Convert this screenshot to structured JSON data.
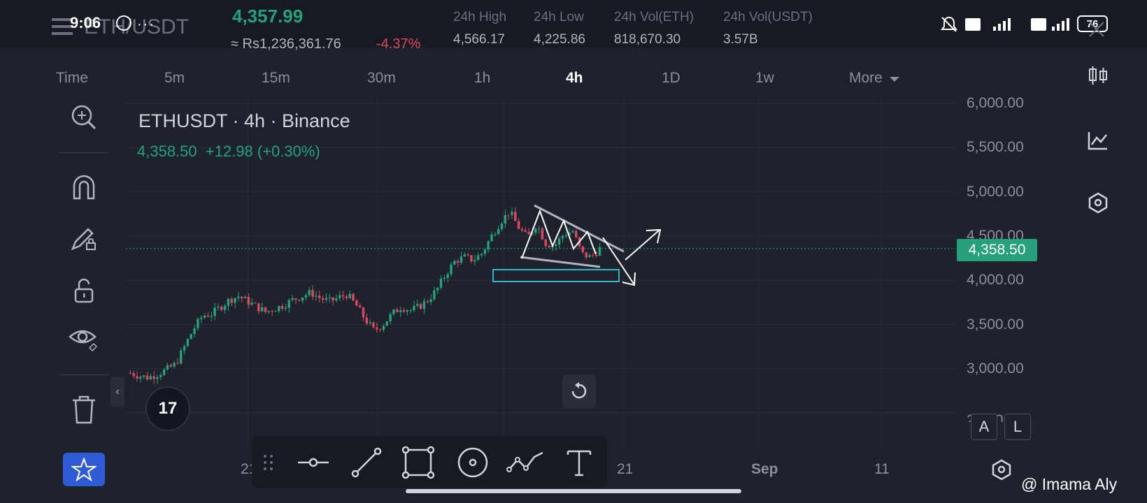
{
  "status_bar": {
    "time": "9:06",
    "battery": "76"
  },
  "header": {
    "pair": "ETH/USDT",
    "last_price": "4,357.99",
    "local_price": "≈ Rs1,236,361.76",
    "change_pct": "-4.37%",
    "stats": [
      {
        "label": "24h High",
        "value": "4,566.17"
      },
      {
        "label": "24h Low",
        "value": "4,225.86"
      },
      {
        "label": "24h Vol(ETH)",
        "value": "818,670.30"
      },
      {
        "label": "24h Vol(USDT)",
        "value": "3.57B"
      }
    ]
  },
  "intervals": {
    "items": [
      "Time",
      "5m",
      "15m",
      "30m",
      "1h",
      "4h",
      "1D",
      "1w",
      "More"
    ],
    "active": "4h"
  },
  "chart_legend": {
    "title": "ETHUSDT · 4h · Binance",
    "values": "4,358.50  +12.98 (+0.30%)"
  },
  "chart_data": {
    "type": "candlestick",
    "symbol": "ETHUSDT",
    "interval": "4h",
    "exchange": "Binance",
    "y_ticks": [
      "6,000.00",
      "5,500.00",
      "5,000.00",
      "4,500.00",
      "4,000.00",
      "3,500.00",
      "3,000.00",
      "2,500.00"
    ],
    "x_ticks": [
      "21",
      "21",
      "Sep",
      "11"
    ],
    "current_price": "4,358.50",
    "ylim": [
      2500,
      6000
    ],
    "price_path": [
      2950,
      2920,
      2900,
      2940,
      2990,
      3050,
      3250,
      3450,
      3600,
      3620,
      3700,
      3780,
      3820,
      3760,
      3700,
      3640,
      3680,
      3720,
      3780,
      3820,
      3860,
      3800,
      3760,
      3800,
      3840,
      3720,
      3560,
      3430,
      3500,
      3620,
      3700,
      3660,
      3700,
      3780,
      3900,
      4080,
      4220,
      4260,
      4230,
      4310,
      4500,
      4660,
      4780,
      4600,
      4480,
      4640,
      4420,
      4390,
      4520,
      4560,
      4300,
      4260,
      4358
    ],
    "annotations": [
      "descending-triangle",
      "support-zone",
      "breakout-arrow-up",
      "breakdown-arrow-down"
    ],
    "grid": true
  },
  "left_tools": [
    "zoom-in",
    "magnet",
    "draw-lock",
    "lock",
    "visibility",
    "delete"
  ],
  "right_tools": [
    "candles",
    "indicators",
    "settings"
  ],
  "draw_tools": [
    "horizontal-line",
    "trend-line",
    "rectangle",
    "circle",
    "path",
    "text"
  ],
  "buttons": {
    "auto": "A",
    "log": "L"
  },
  "tv_logo": "17",
  "watermark": "@ Imama Aly"
}
